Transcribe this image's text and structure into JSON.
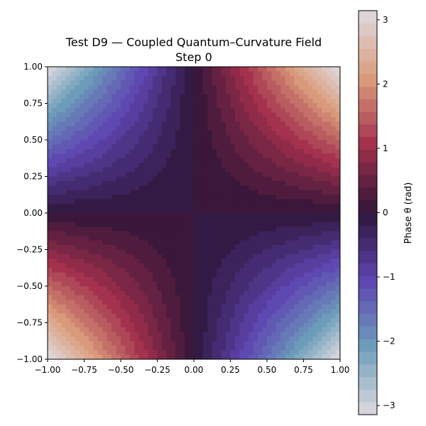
{
  "chart_data": {
    "type": "heatmap",
    "title": "Test D9 — Coupled Quantum–Curvature Field",
    "subtitle": "Step 0",
    "xlabel": "",
    "ylabel": "",
    "xlim": [
      -1.0,
      1.0
    ],
    "ylim": [
      -1.0,
      1.0
    ],
    "x_ticks": [
      "−1.00",
      "−0.75",
      "−0.50",
      "−0.25",
      "0.00",
      "0.25",
      "0.50",
      "0.75",
      "1.00"
    ],
    "y_ticks": [
      "1.00",
      "0.75",
      "0.50",
      "0.25",
      "0.00",
      "−0.25",
      "−0.50",
      "−0.75",
      "−1.00"
    ],
    "field": {
      "formula": "theta = pi * x * y",
      "grid_resolution": 64
    },
    "colorbar": {
      "label": "Phase θ (rad)",
      "range": [
        -3.14159,
        3.14159
      ],
      "ticks": [
        "3",
        "2",
        "1",
        "0",
        "−1",
        "−2",
        "−3"
      ],
      "levels": 32,
      "colormap": "twilight_shifted",
      "color_stops": [
        "#dedadf",
        "#6d9eba",
        "#5e45b2",
        "#2f1539",
        "#a22f4c",
        "#db9d7d",
        "#dedadf"
      ]
    },
    "grid": false
  }
}
